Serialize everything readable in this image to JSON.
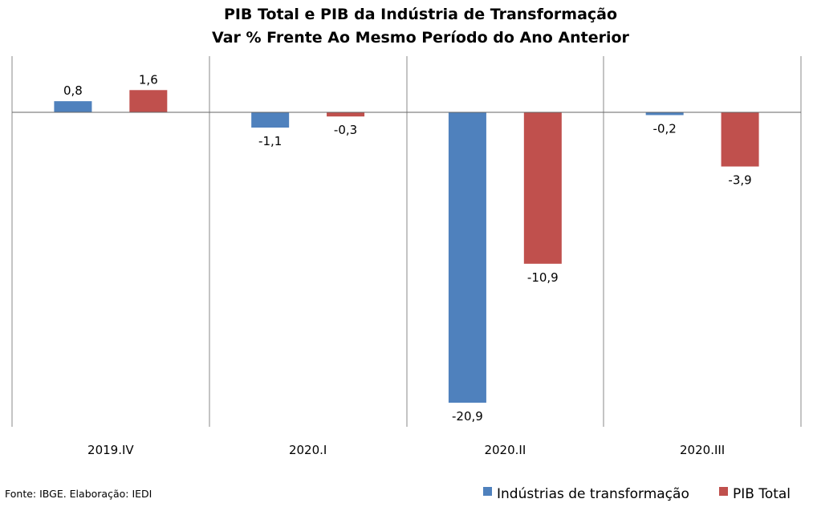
{
  "chart_data": {
    "type": "bar",
    "title": "PIB Total e PIB da Indústria de Transformação",
    "subtitle": "Var % Frente Ao Mesmo Período do Ano Anterior",
    "categories": [
      "2019.IV",
      "2020.I",
      "2020.II",
      "2020.III"
    ],
    "series": [
      {
        "name": "Indústrias de transformação",
        "values": [
          0.8,
          -1.1,
          -20.9,
          -0.2
        ],
        "labels": [
          "0,8",
          "-1,1",
          "-20,9",
          "-0,2"
        ],
        "color": "#4F81BD"
      },
      {
        "name": "PIB Total",
        "values": [
          1.6,
          -0.3,
          -10.9,
          -3.9
        ],
        "labels": [
          "1,6",
          "-0,3",
          "-10,9",
          "-3,9"
        ],
        "color": "#C0504D"
      }
    ],
    "ylim": [
      -22.4,
      4.0
    ],
    "grid": false,
    "legend_position": "bottom-right",
    "source": "Fonte: IBGE. Elaboração: IEDI"
  }
}
